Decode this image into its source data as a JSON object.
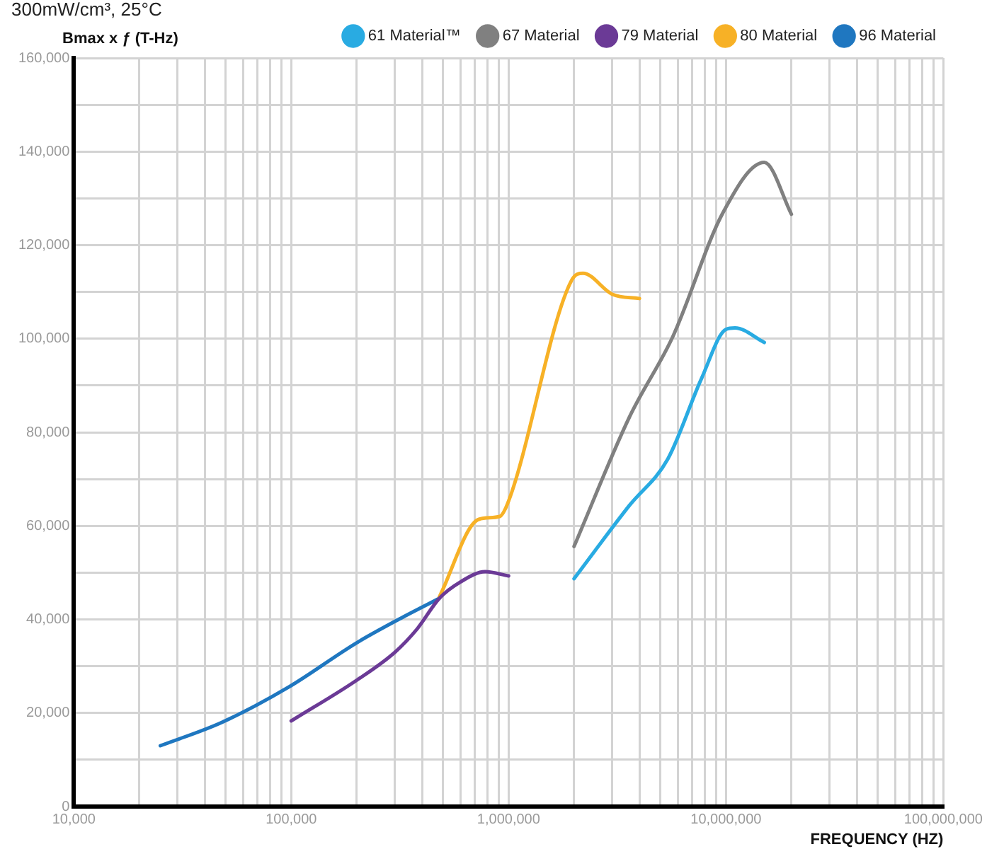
{
  "chart_data": {
    "type": "line",
    "subtitle": "300mW/cm³, 25°C",
    "ylabel": "Bmax x ƒ (T-Hz)",
    "xlabel": "FREQUENCY (HZ)",
    "log": "x",
    "grid": true,
    "legend": "top right",
    "marker": "none",
    "line_style": "solid",
    "xlim": [
      10000,
      100000000
    ],
    "xticks": [
      {
        "value": 10000,
        "label": "10,000"
      },
      {
        "value": 20000,
        "label": null
      },
      {
        "value": 30000,
        "label": null
      },
      {
        "value": 40000,
        "label": null
      },
      {
        "value": 50000,
        "label": null
      },
      {
        "value": 60000,
        "label": null
      },
      {
        "value": 70000,
        "label": null
      },
      {
        "value": 80000,
        "label": null
      },
      {
        "value": 90000,
        "label": null
      },
      {
        "value": 100000,
        "label": "100,000"
      },
      {
        "value": 200000,
        "label": null
      },
      {
        "value": 300000,
        "label": null
      },
      {
        "value": 400000,
        "label": null
      },
      {
        "value": 500000,
        "label": null
      },
      {
        "value": 600000,
        "label": null
      },
      {
        "value": 700000,
        "label": null
      },
      {
        "value": 800000,
        "label": null
      },
      {
        "value": 900000,
        "label": null
      },
      {
        "value": 1000000,
        "label": "1,000,000"
      },
      {
        "value": 2000000,
        "label": null
      },
      {
        "value": 3000000,
        "label": null
      },
      {
        "value": 4000000,
        "label": null
      },
      {
        "value": 5000000,
        "label": null
      },
      {
        "value": 6000000,
        "label": null
      },
      {
        "value": 7000000,
        "label": null
      },
      {
        "value": 8000000,
        "label": null
      },
      {
        "value": 9000000,
        "label": null
      },
      {
        "value": 10000000,
        "label": "10,000,000"
      },
      {
        "value": 20000000,
        "label": null
      },
      {
        "value": 30000000,
        "label": null
      },
      {
        "value": 40000000,
        "label": null
      },
      {
        "value": 50000000,
        "label": null
      },
      {
        "value": 60000000,
        "label": null
      },
      {
        "value": 70000000,
        "label": null
      },
      {
        "value": 80000000,
        "label": null
      },
      {
        "value": 90000000,
        "label": null
      },
      {
        "value": 100000000,
        "label": "100,000,000"
      }
    ],
    "ylim": [
      0,
      160000
    ],
    "yticks": [
      {
        "value": 0,
        "label": "0"
      },
      {
        "value": 10000,
        "label": null
      },
      {
        "value": 20000,
        "label": "20,000"
      },
      {
        "value": 30000,
        "label": null
      },
      {
        "value": 40000,
        "label": "40,000"
      },
      {
        "value": 50000,
        "label": null
      },
      {
        "value": 60000,
        "label": "60,000"
      },
      {
        "value": 70000,
        "label": null
      },
      {
        "value": 80000,
        "label": "80,000"
      },
      {
        "value": 90000,
        "label": null
      },
      {
        "value": 100000,
        "label": "100,000"
      },
      {
        "value": 110000,
        "label": null
      },
      {
        "value": 120000,
        "label": "120,000"
      },
      {
        "value": 130000,
        "label": null
      },
      {
        "value": 140000,
        "label": "140,000"
      },
      {
        "value": 150000,
        "label": null
      },
      {
        "value": 160000,
        "label": "160,000"
      }
    ],
    "series": [
      {
        "name": "61 Material™",
        "color": "#29abe2",
        "x": [
          2000000,
          3600000,
          5400000,
          7700000,
          10000000,
          11000000,
          15000000
        ],
        "values": [
          48700,
          64400,
          74300,
          91400,
          102000,
          102300,
          99200
        ]
      },
      {
        "name": "67 Material",
        "color": "#808080",
        "x": [
          2000000,
          3600000,
          5700000,
          9700000,
          15000000,
          20000000
        ],
        "values": [
          55600,
          83300,
          100500,
          127000,
          137700,
          126600
        ]
      },
      {
        "name": "79 Material",
        "color": "#6b3a96",
        "x": [
          100000,
          200000,
          300000,
          380000,
          480000,
          600000,
          780000,
          1000000
        ],
        "values": [
          18300,
          27000,
          33000,
          38000,
          44500,
          48000,
          50200,
          49300
        ]
      },
      {
        "name": "80 Material",
        "color": "#f7b126",
        "x": [
          480000,
          730000,
          910000,
          1000000,
          1950000,
          2200000,
          3000000,
          4000000
        ],
        "values": [
          44800,
          61400,
          62000,
          65300,
          112500,
          114000,
          109500,
          108600
        ]
      },
      {
        "name": "96 Material",
        "color": "#1f77c0",
        "x": [
          25000,
          48000,
          97000,
          200000,
          330000,
          480000
        ],
        "values": [
          13000,
          18000,
          25500,
          35000,
          40600,
          44500
        ]
      }
    ]
  }
}
